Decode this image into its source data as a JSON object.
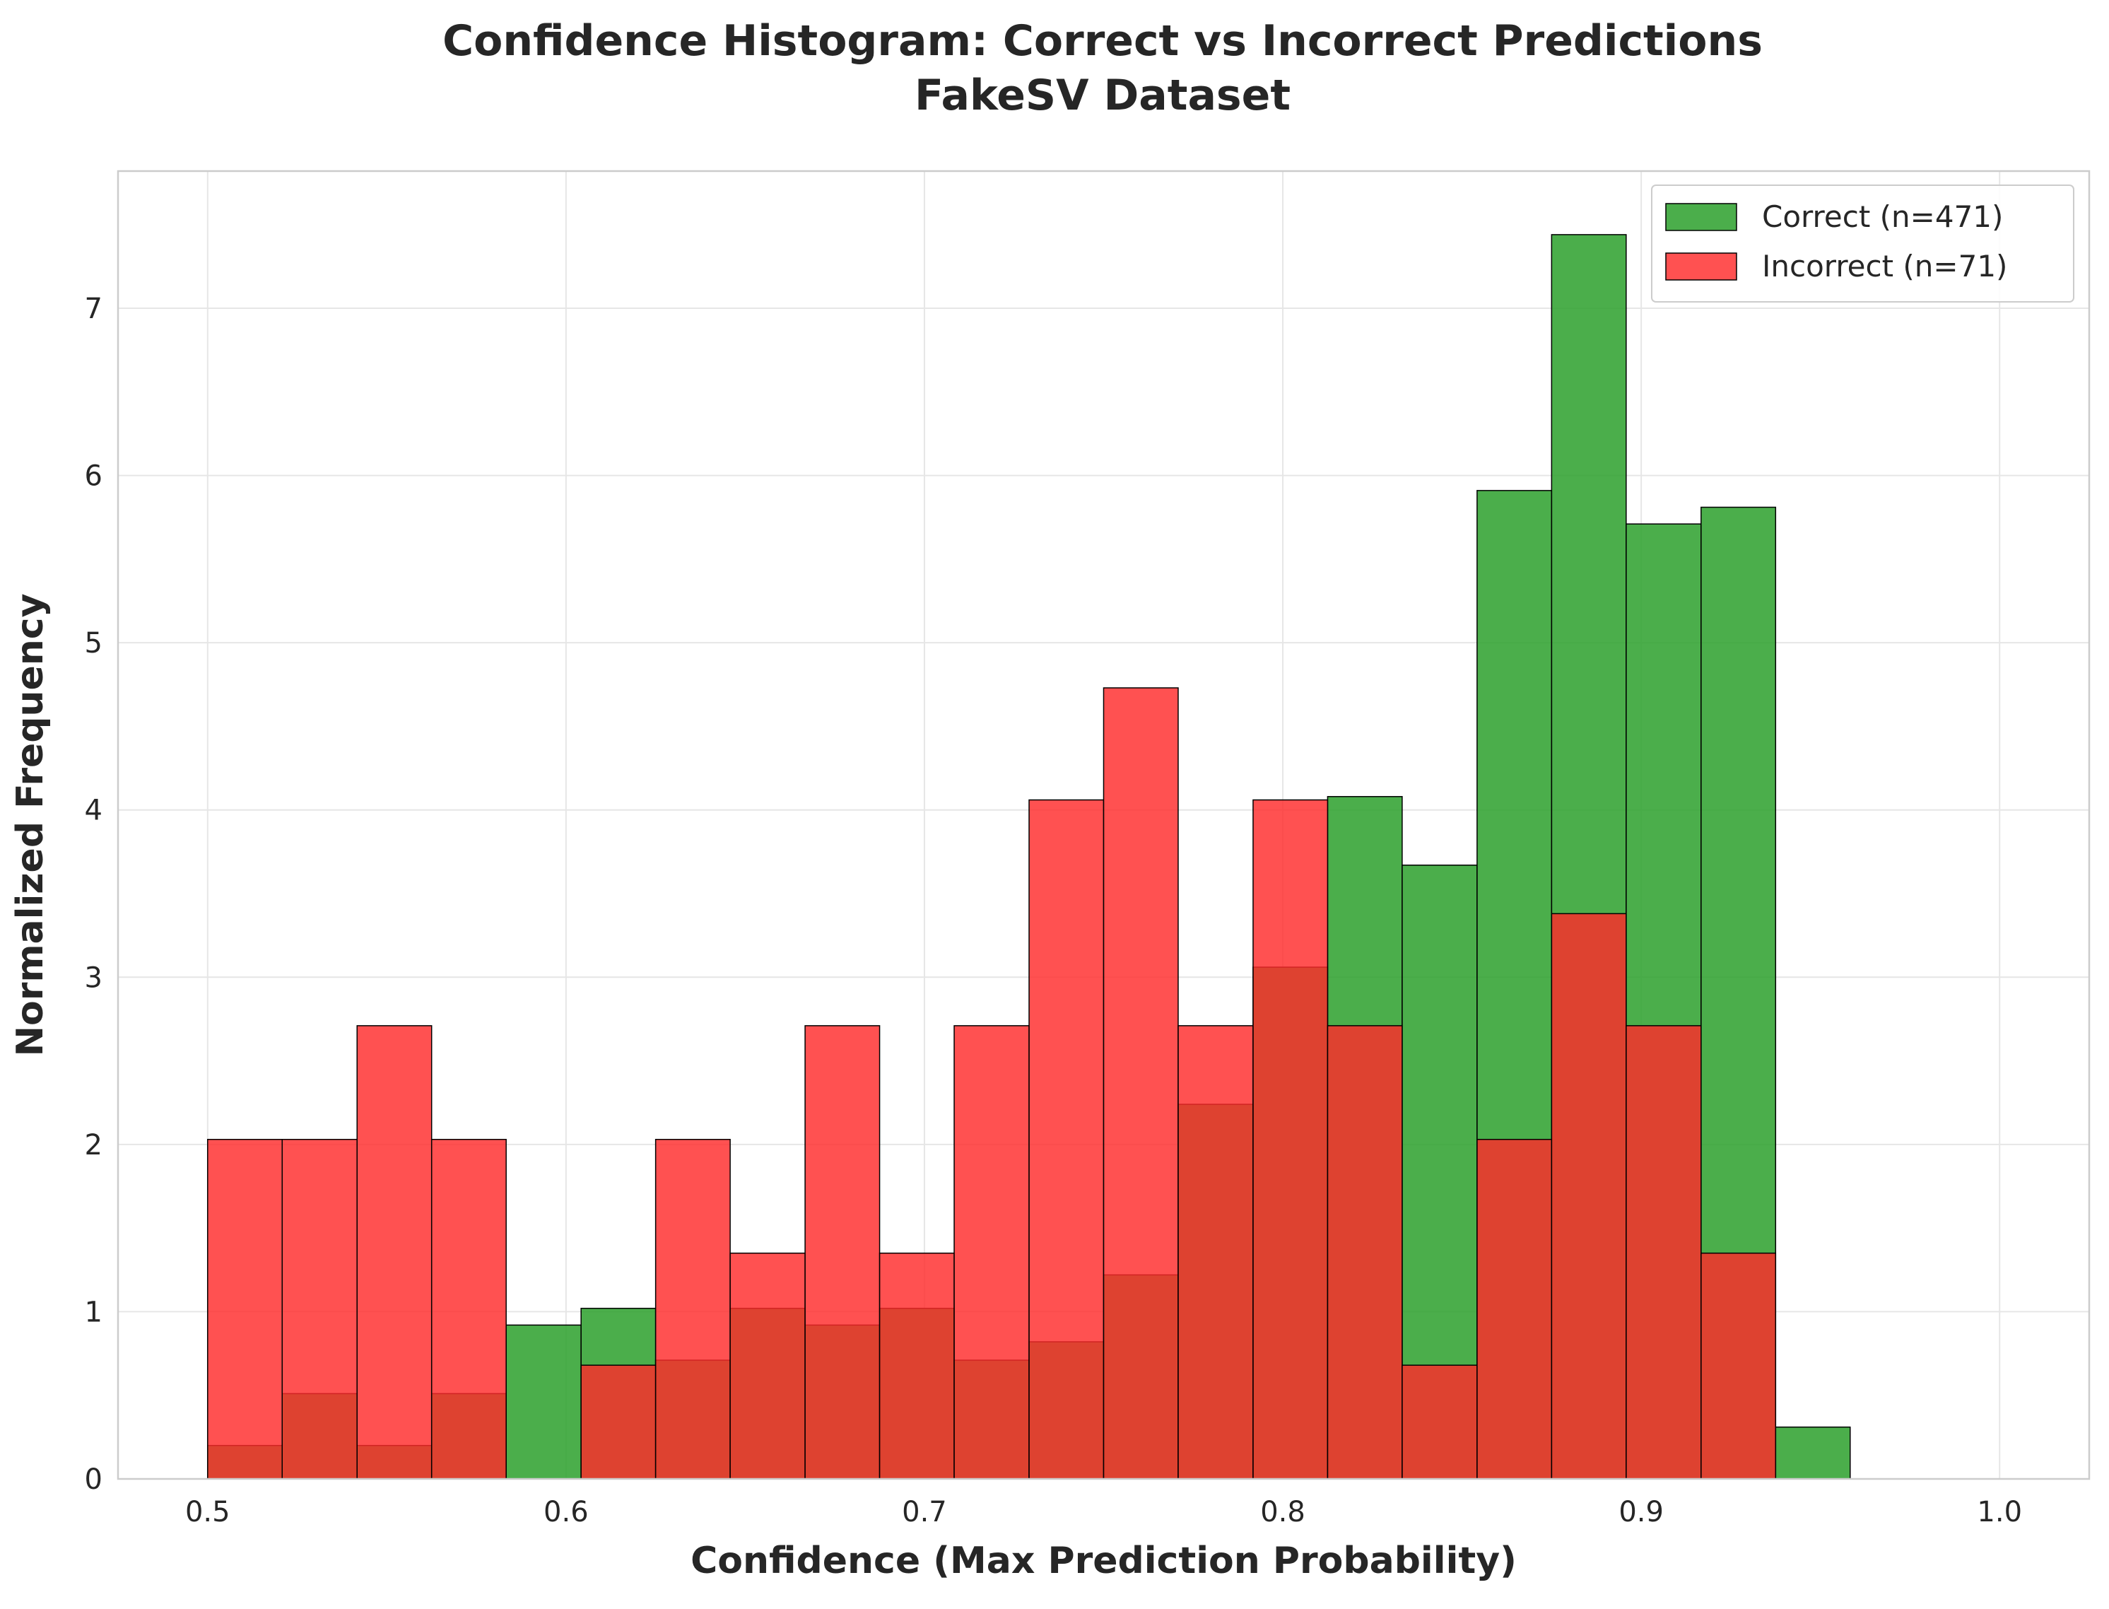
{
  "chart_data": {
    "type": "bar",
    "subtype": "overlaid-histogram",
    "title": "Confidence Histogram: Correct vs Incorrect Predictions",
    "subtitle": "FakeSV Dataset",
    "xlabel": "Confidence (Max Prediction Probability)",
    "ylabel": "Normalized Frequency",
    "xlim": [
      0.475,
      1.025
    ],
    "ylim": [
      0,
      7.82
    ],
    "xticks": [
      0.5,
      0.6,
      0.7,
      0.8,
      0.9,
      1.0
    ],
    "xtick_labels": [
      "0.5",
      "0.6",
      "0.7",
      "0.8",
      "0.9",
      "1.0"
    ],
    "yticks": [
      0,
      1,
      2,
      3,
      4,
      5,
      6,
      7
    ],
    "ytick_labels": [
      "0",
      "1",
      "2",
      "3",
      "4",
      "5",
      "6",
      "7"
    ],
    "grid": true,
    "legend_position": "top-right",
    "bin_edges": [
      0.5,
      0.5208,
      0.5417,
      0.5625,
      0.5833,
      0.6042,
      0.625,
      0.6458,
      0.6667,
      0.6875,
      0.7083,
      0.7292,
      0.75,
      0.7708,
      0.7917,
      0.8125,
      0.8333,
      0.8542,
      0.875,
      0.8958,
      0.9167,
      0.9375,
      0.9583
    ],
    "series": [
      {
        "name": "Correct (n=471)",
        "color": "#2ca02c",
        "values": [
          0.2,
          0.51,
          0.2,
          0.51,
          0.92,
          1.02,
          0.71,
          1.02,
          0.92,
          1.02,
          0.71,
          0.82,
          1.22,
          2.24,
          3.06,
          4.08,
          3.67,
          5.91,
          7.44,
          5.71,
          5.81,
          0.31
        ]
      },
      {
        "name": "Incorrect (n=71)",
        "color": "#ff2b2b",
        "values": [
          2.03,
          2.03,
          2.71,
          2.03,
          0,
          0.68,
          2.03,
          1.35,
          2.71,
          1.35,
          2.71,
          4.06,
          4.73,
          2.71,
          4.06,
          2.71,
          0.68,
          2.03,
          3.38,
          2.71,
          1.35,
          0
        ]
      }
    ]
  }
}
